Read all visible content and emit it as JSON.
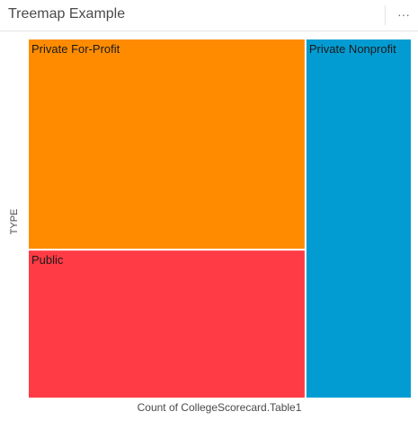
{
  "header": {
    "title": "Treemap Example",
    "more_label": "···"
  },
  "chart_data": {
    "type": "treemap",
    "title": "Treemap Example",
    "ylabel": "TYPE",
    "xlabel": "Count of CollegeScorecard.Table1",
    "nodes": [
      {
        "label": "Private For-Profit",
        "value": 2700,
        "color": "#ff8c00"
      },
      {
        "label": "Public",
        "value": 1900,
        "color": "#ff3b45"
      },
      {
        "label": "Private Nonprofit",
        "value": 1750,
        "color": "#039cd2"
      }
    ]
  }
}
